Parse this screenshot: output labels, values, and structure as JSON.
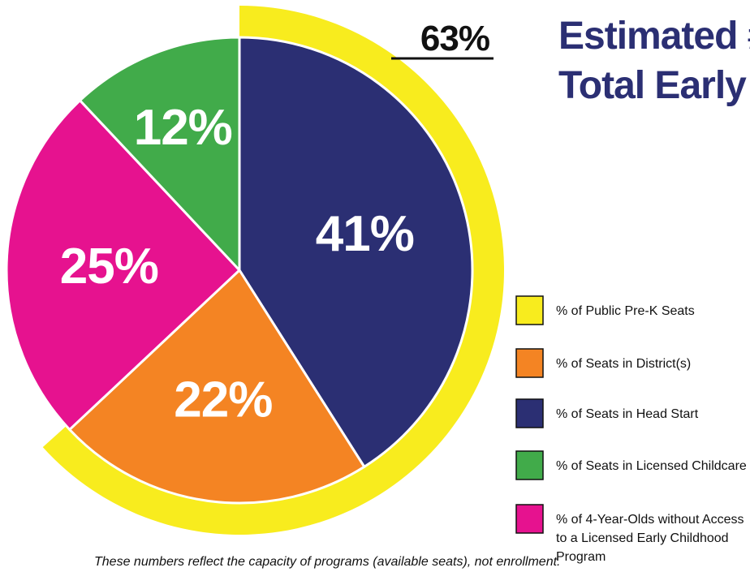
{
  "chart_data": {
    "type": "pie",
    "title_lines": [
      "Estimated # o",
      "Total Early Ch"
    ],
    "slices": [
      {
        "name": "% of Seats in Head Start",
        "value": 41,
        "label": "41%",
        "color": "#2b2f73"
      },
      {
        "name": "% of Seats in District(s)",
        "value": 22,
        "label": "22%",
        "color": "#f48423"
      },
      {
        "name": "% of 4-Year-Olds without Access to a Licensed Early Childhood Program",
        "value": 25,
        "label": "25%",
        "color": "#e6128f"
      },
      {
        "name": "% of Seats in Licensed Childcare",
        "value": 12,
        "label": "12%",
        "color": "#41ab4a"
      }
    ],
    "overlay_ring": {
      "name": "% of Public Pre-K Seats",
      "value": 63,
      "label": "63%",
      "color": "#f8ec1e",
      "covers": [
        "% of Seats in Head Start",
        "% of Seats in District(s)"
      ]
    },
    "legend": {
      "placement": "right",
      "items": [
        {
          "label_lines": [
            "% of Public Pre-K Seats"
          ],
          "color": "#f8ec1e"
        },
        {
          "label_lines": [
            "% of Seats in District(s)"
          ],
          "color": "#f48423"
        },
        {
          "label_lines": [
            "% of Seats in Head Start"
          ],
          "color": "#2b2f73"
        },
        {
          "label_lines": [
            "% of Seats in Licensed Childcare"
          ],
          "color": "#41ab4a"
        },
        {
          "label_lines": [
            "% of 4-Year-Olds without Access",
            "to a Licensed Early Childhood",
            "Program"
          ],
          "color": "#e6128f"
        }
      ]
    },
    "footnote": "These numbers reflect the capacity of programs (available seats), not enrollment."
  }
}
